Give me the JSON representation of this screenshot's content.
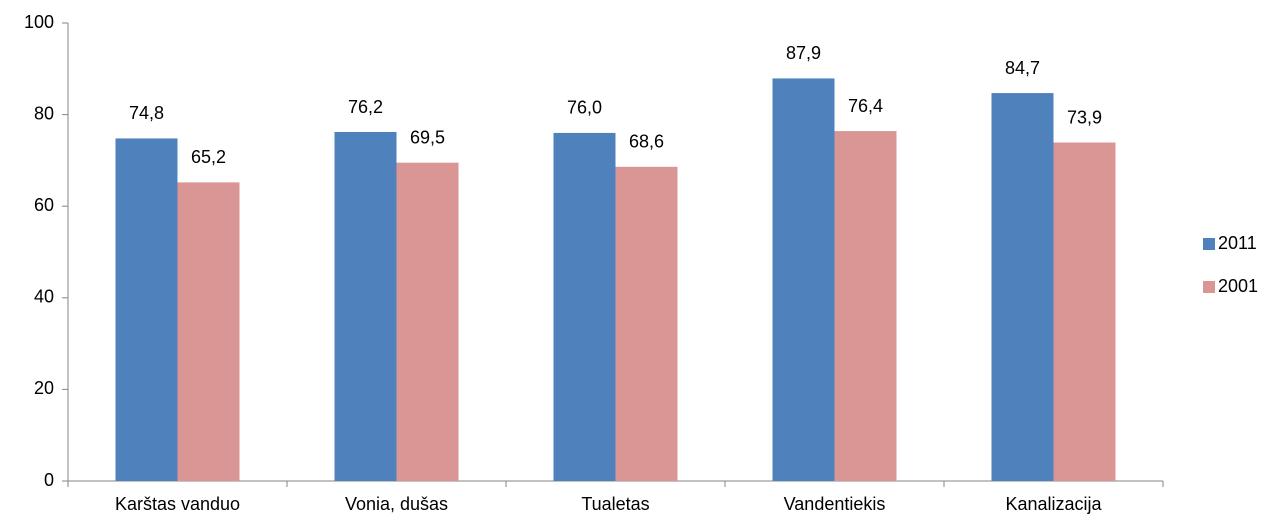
{
  "chart_data": {
    "type": "bar",
    "categories": [
      "Karštas vanduo",
      "Vonia, dušas",
      "Tualetas",
      "Vandentiekis",
      "Kanalizacija"
    ],
    "series": [
      {
        "name": "2011",
        "color": "#4f81bd",
        "values": [
          74.8,
          76.2,
          76.0,
          87.9,
          84.7
        ],
        "value_labels": [
          "74,8",
          "76,2",
          "76,0",
          "87,9",
          "84,7"
        ]
      },
      {
        "name": "2001",
        "color": "#d99694",
        "values": [
          65.2,
          69.5,
          68.6,
          76.4,
          73.9
        ],
        "value_labels": [
          "65,2",
          "69,5",
          "68,6",
          "76,4",
          "73,9"
        ]
      }
    ],
    "ylim": [
      0,
      100
    ],
    "yticks": [
      0,
      20,
      40,
      60,
      80,
      100
    ],
    "grid": false,
    "legend": "right"
  }
}
